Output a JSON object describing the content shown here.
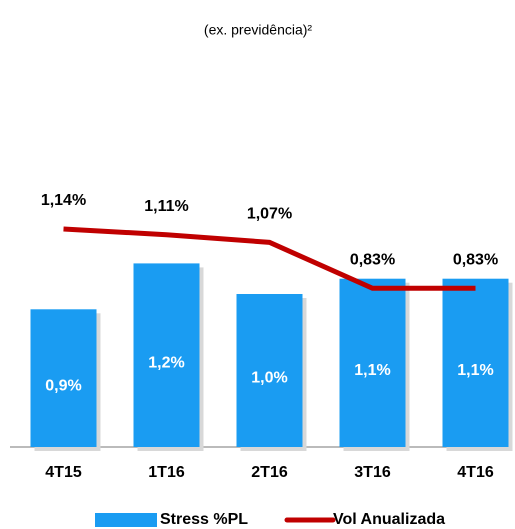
{
  "chart_data": {
    "type": "bar",
    "subtitle": "(ex. previdência)²",
    "categories": [
      "4T15",
      "1T16",
      "2T16",
      "3T16",
      "4T16"
    ],
    "series": [
      {
        "name": "Stress %PL",
        "type": "bar",
        "axis": "y",
        "color": "#1a9cf2",
        "values": [
          0.9,
          1.2,
          1.0,
          1.1,
          1.1
        ],
        "value_labels": [
          "0,9%",
          "1,2%",
          "1,0%",
          "1,1%",
          "1,1%"
        ]
      },
      {
        "name": "Vol Anualizada",
        "type": "line",
        "axis": "y2",
        "color": "#c00000",
        "values": [
          1.14,
          1.11,
          1.07,
          0.83,
          0.83
        ],
        "value_labels": [
          "1,14%",
          "1,11%",
          "1,07%",
          "0,83%",
          "0,83%"
        ]
      }
    ],
    "ylim": [
      0,
      2
    ],
    "y2lim": [
      0,
      1.6
    ],
    "grid": false,
    "legend": "bottom"
  }
}
